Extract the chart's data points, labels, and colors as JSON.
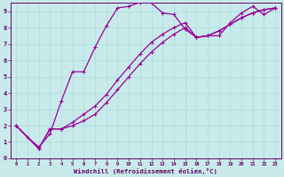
{
  "xlabel": "Windchill (Refroidissement éolien,°C)",
  "bg_color": "#c8eaea",
  "line_color": "#990099",
  "grid_color": "#aadddd",
  "spine_color": "#660066",
  "tick_label_color": "#660066",
  "xlim": [
    -0.5,
    23.5
  ],
  "ylim": [
    0,
    9.5
  ],
  "xticks": [
    0,
    1,
    2,
    3,
    4,
    5,
    6,
    7,
    8,
    9,
    10,
    11,
    12,
    13,
    14,
    15,
    16,
    17,
    18,
    19,
    20,
    21,
    22,
    23
  ],
  "yticks": [
    0,
    1,
    2,
    3,
    4,
    5,
    6,
    7,
    8,
    9
  ],
  "series1_x": [
    0,
    1,
    2,
    3,
    4,
    5,
    6,
    7,
    8,
    9,
    10,
    11,
    12,
    13,
    14,
    15,
    16,
    17,
    18,
    19,
    20,
    21,
    22,
    23
  ],
  "series1_y": [
    2.0,
    1.3,
    0.7,
    1.5,
    3.5,
    5.3,
    5.3,
    6.8,
    8.1,
    9.2,
    9.3,
    9.55,
    9.5,
    8.9,
    8.8,
    7.9,
    7.4,
    7.5,
    7.5,
    8.3,
    8.9,
    9.3,
    8.8,
    9.2
  ],
  "series2_x": [
    0,
    2,
    3,
    4,
    5,
    6,
    7,
    8,
    9,
    10,
    11,
    12,
    13,
    14,
    15,
    16,
    17,
    18,
    19,
    20,
    21,
    22,
    23
  ],
  "series2_y": [
    2.0,
    0.6,
    1.8,
    1.8,
    2.2,
    2.7,
    3.2,
    3.9,
    4.8,
    5.6,
    6.4,
    7.1,
    7.6,
    8.0,
    8.3,
    7.4,
    7.5,
    7.8,
    8.2,
    8.6,
    8.9,
    9.1,
    9.2
  ],
  "series3_x": [
    0,
    2,
    3,
    4,
    5,
    6,
    7,
    8,
    9,
    10,
    11,
    12,
    13,
    14,
    15,
    16,
    17,
    18,
    19,
    20,
    21,
    22,
    23
  ],
  "series3_y": [
    2.0,
    0.6,
    1.8,
    1.8,
    2.0,
    2.3,
    2.7,
    3.4,
    4.2,
    5.0,
    5.8,
    6.5,
    7.1,
    7.6,
    8.0,
    7.4,
    7.5,
    7.8,
    8.2,
    8.6,
    8.9,
    9.1,
    9.2
  ]
}
